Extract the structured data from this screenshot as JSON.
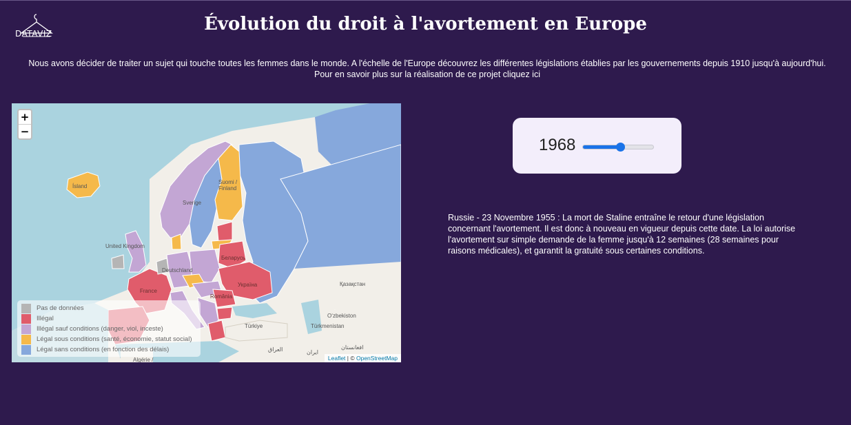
{
  "header": {
    "logo_text": "DATAVIZ",
    "title": "Évolution du droit à l'avortement en Europe"
  },
  "intro": {
    "text": "Nous avons décider de traiter un sujet qui touche toutes les femmes dans le monde. A l'échelle de l'Europe découvrez les différentes législations établies par les gouvernements depuis 1910 jusqu'à aujourd'hui. Pour en savoir plus sur la réalisation de ce projet",
    "link": "cliquez ici"
  },
  "map": {
    "zoom_in": "+",
    "zoom_out": "−",
    "labels": {
      "island": "Ísland",
      "uk": "United Kingdom",
      "sverige": "Sverige",
      "suomi": "Suomi / Finland",
      "belarus": "Беларусь",
      "ukraina": "Україна",
      "deutschland": "Deutschland",
      "france": "France",
      "romania": "România",
      "kazakhstan": "Қазақстан",
      "ozbekiston": "O‘zbekiston",
      "turkmenistan": "Türkmenistan",
      "turkiye": "Türkiye",
      "afghanistan": "افغانستان",
      "iraq": "العراق",
      "iran": "ایران",
      "algerie": "Algérie /"
    },
    "legend": [
      {
        "label": "Pas de données",
        "color": "#b5b5b5"
      },
      {
        "label": "Illégal",
        "color": "#e05c6b"
      },
      {
        "label": "Illégal sauf conditions (danger, viol, inceste)",
        "color": "#c3a6d4"
      },
      {
        "label": "Légal sous conditions (santé, économie, statut social)",
        "color": "#f5b94a"
      },
      {
        "label": "Légal sans conditions (en fonction des délais)",
        "color": "#86a8dc"
      }
    ],
    "attribution": {
      "leaflet": "Leaflet",
      "sep": " | © ",
      "osm": "OpenStreetMap"
    }
  },
  "slider": {
    "year": "1968",
    "min": 1910,
    "max": 2020,
    "value": 1968
  },
  "description": "Russie - 23 Novembre 1955 : La mort de Staline entraîne le retour d'une législation concernant l'avortement. Il est donc à nouveau en vigueur depuis cette date. La loi autorise l'avortement sur simple demande de la femme jusqu'à 12 semaines (28 semaines pour raisons médicales), et garantit la gratuité sous certaines conditions.",
  "colors": {
    "background": "#2e1a4d",
    "slider_accent": "#1a73e8",
    "sea": "#aad3df"
  }
}
